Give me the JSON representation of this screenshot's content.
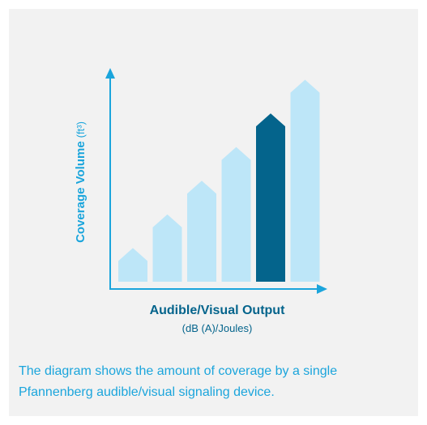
{
  "colors": {
    "card_background": "#f2f2f2",
    "accent_blue": "#1ba5dc",
    "bar_light": "#bde6f8",
    "bar_highlight": "#04648c",
    "axis_label_dark": "#04648c"
  },
  "chart_data": {
    "type": "bar",
    "categories": [
      "1",
      "2",
      "3",
      "4",
      "5",
      "6"
    ],
    "values": [
      1,
      2,
      3,
      4,
      5,
      6
    ],
    "highlighted_index": 4,
    "bar_tip": "arrow",
    "xlabel": "Audible/Visual Output",
    "xlabel_units": "(dB (A)/Joules)",
    "ylabel": "Coverage Volume",
    "ylabel_units": "(ft³)",
    "ylim": [
      0,
      6.3
    ],
    "grid": false,
    "legend": "none",
    "tick_labels": false
  },
  "caption": "The diagram shows the amount of coverage by a single Pfannenberg audible/visual signaling device."
}
